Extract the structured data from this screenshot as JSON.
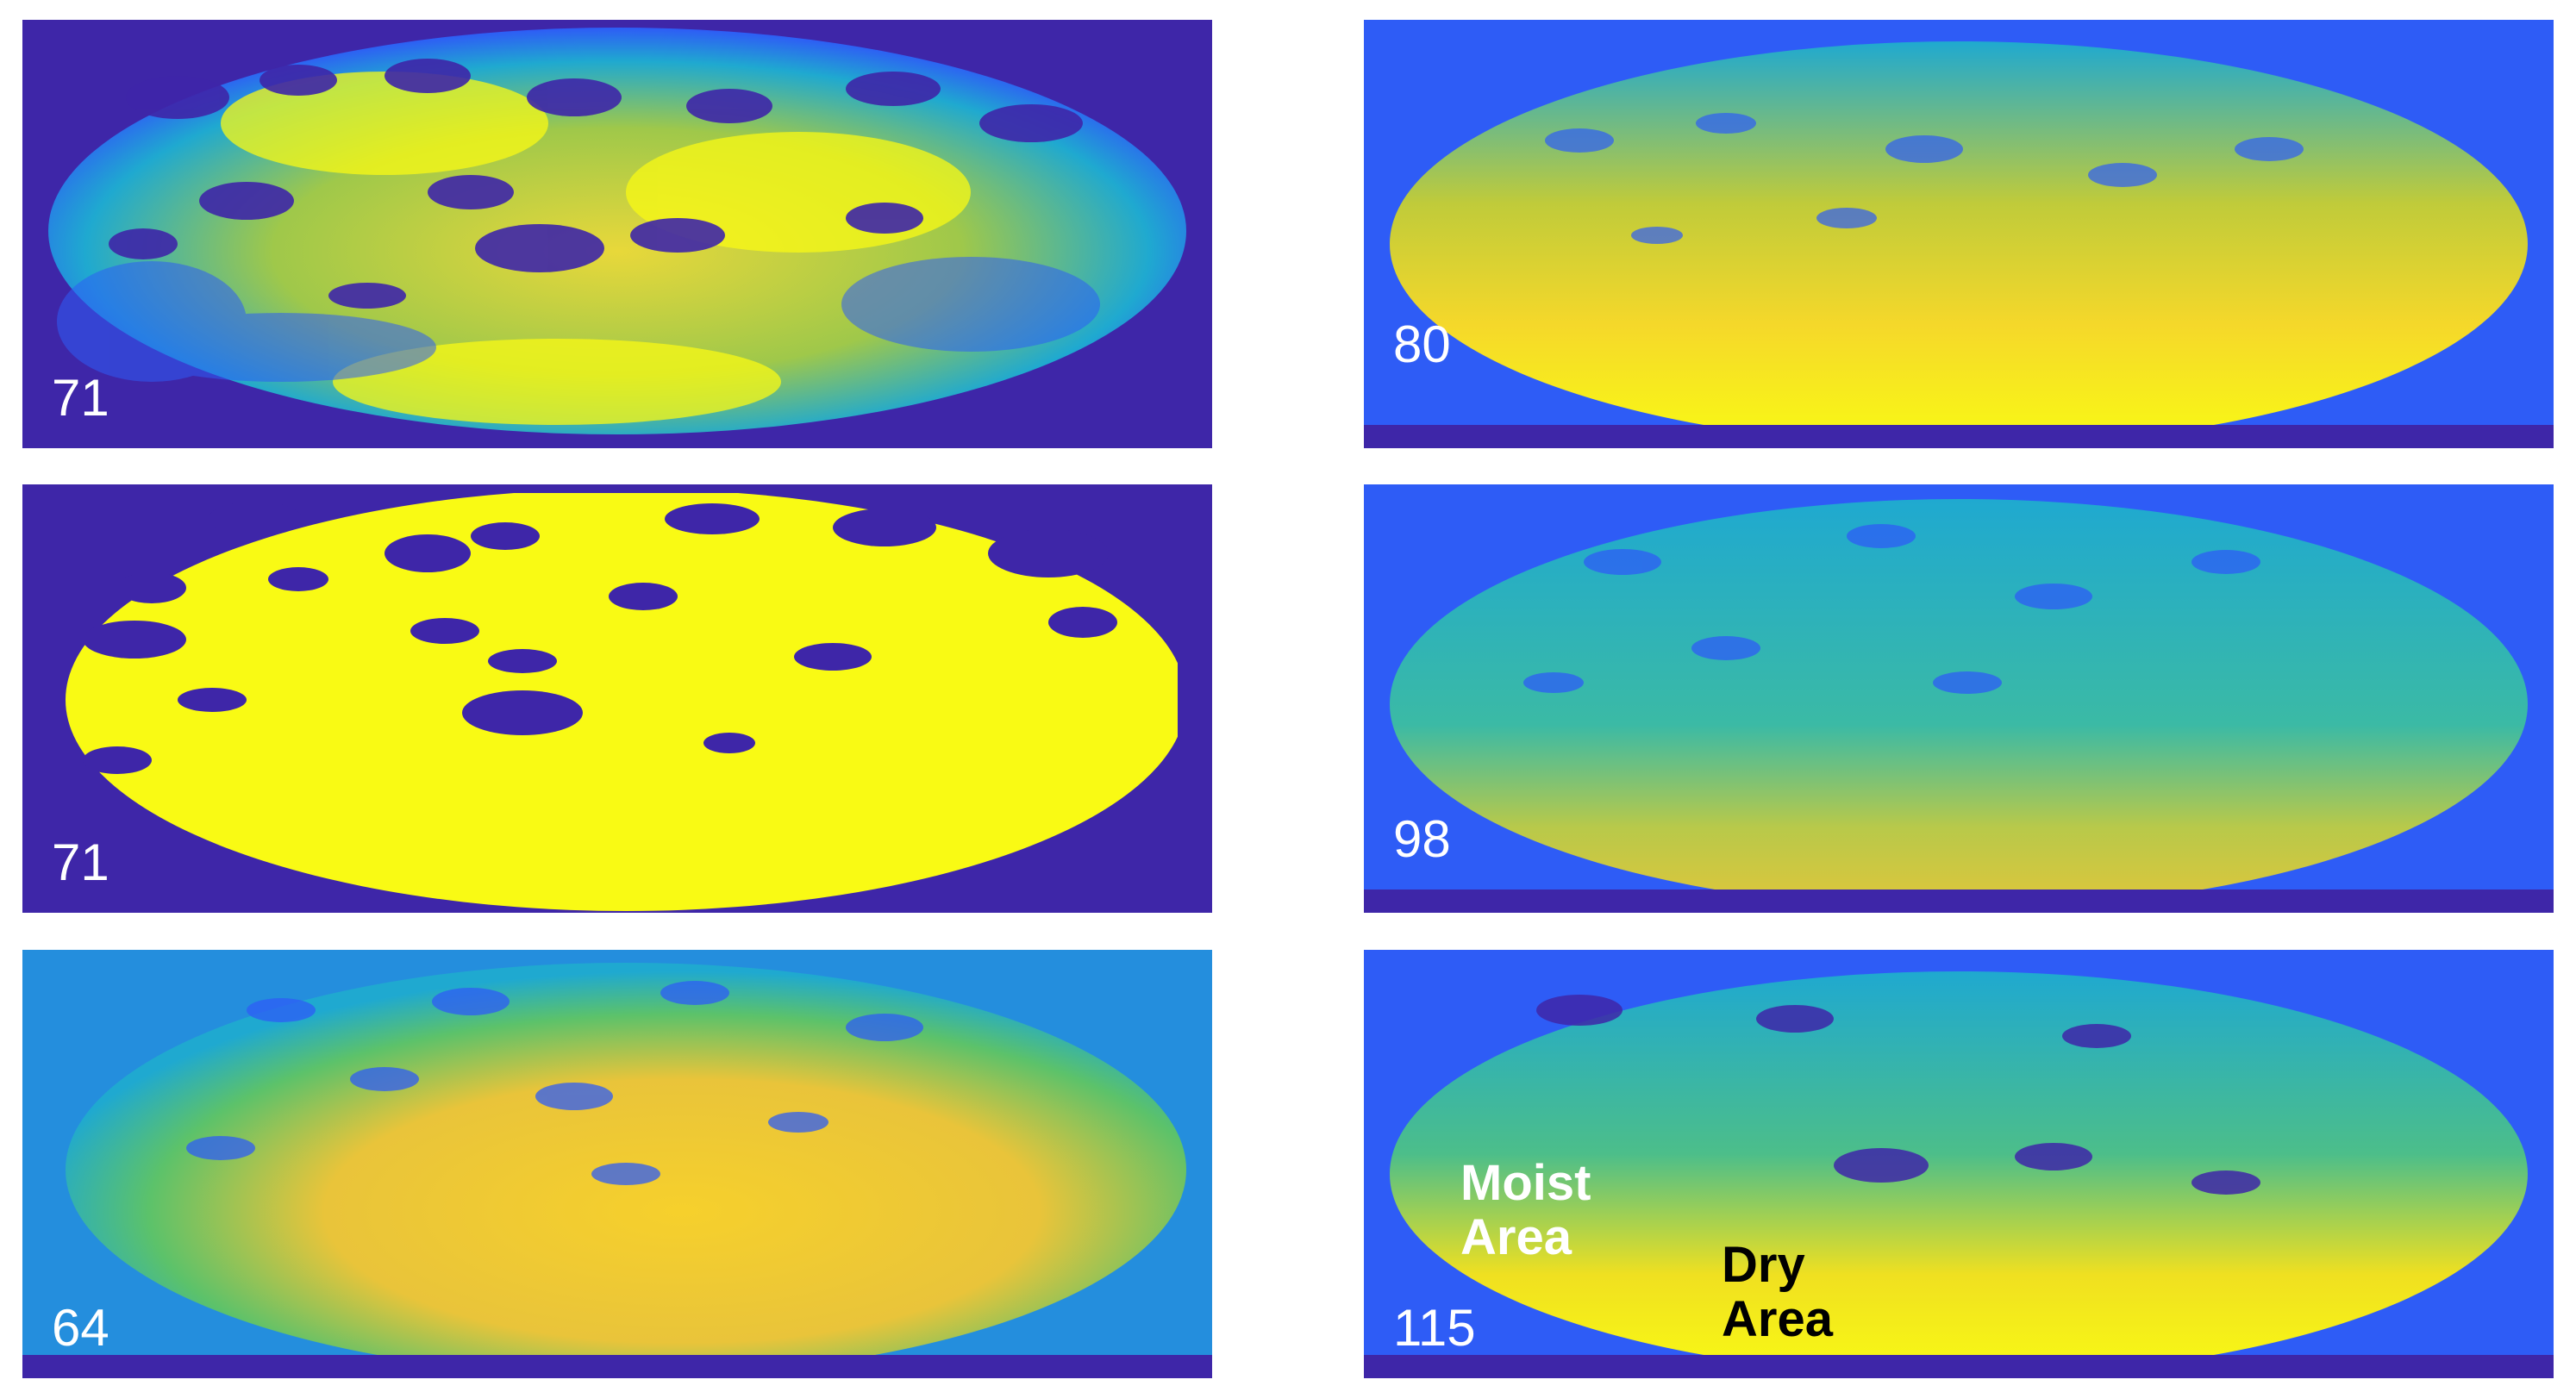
{
  "colors": {
    "background": "#3e26a8",
    "low": "#3e26a8",
    "blue": "#2e5cf6",
    "cyan": "#18b7c3",
    "green": "#59c466",
    "orange_yellow": "#f5bd2e",
    "yellow": "#f9fa14"
  },
  "panels": [
    {
      "id": "left-top",
      "label": "71",
      "palette": "mixed-dark"
    },
    {
      "id": "left-middle",
      "label": "71",
      "palette": "bright-yellow"
    },
    {
      "id": "left-bottom",
      "label": "64",
      "palette": "warm-yellow"
    },
    {
      "id": "right-top",
      "label": "80",
      "palette": "cyan-yellow"
    },
    {
      "id": "right-middle",
      "label": "98",
      "palette": "cyan-green"
    },
    {
      "id": "right-bottom",
      "label": "115",
      "palette": "cyan-yellow-bottom"
    }
  ],
  "annotations": {
    "moist": "Moist\nArea",
    "dry": "Dry\nArea"
  }
}
